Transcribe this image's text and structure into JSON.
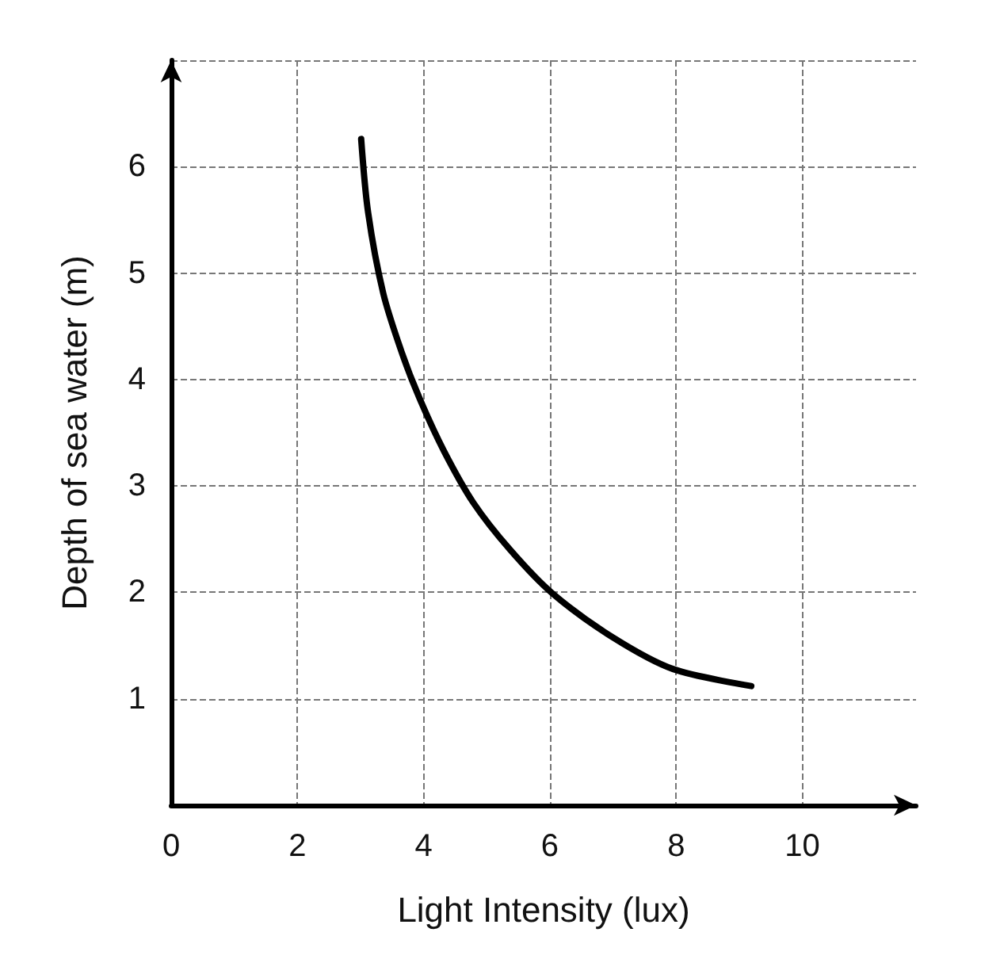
{
  "chart_data": {
    "type": "line",
    "xlabel": "Light Intensity (lux)",
    "ylabel": "Depth of sea water (m)",
    "x": [
      3.01,
      3.12,
      3.36,
      3.65,
      3.93,
      4.32,
      4.79,
      5.37,
      6.04,
      6.99,
      7.95,
      9.19
    ],
    "series": [
      {
        "color": "#000000",
        "values": [
          6.26,
          5.57,
          4.81,
          4.26,
          3.83,
          3.33,
          2.84,
          2.4,
          1.99,
          1.58,
          1.28,
          1.12
        ]
      }
    ],
    "xlim": [
      0,
      11.8
    ],
    "xticks": [
      0,
      2,
      4,
      6,
      8,
      10
    ],
    "ylim": [
      0,
      7
    ],
    "yticks": [
      1,
      2,
      3,
      4,
      5,
      6,
      {
        "value": 7,
        "label": null
      }
    ],
    "grid": true,
    "marker": "none",
    "line_style": "solid"
  }
}
